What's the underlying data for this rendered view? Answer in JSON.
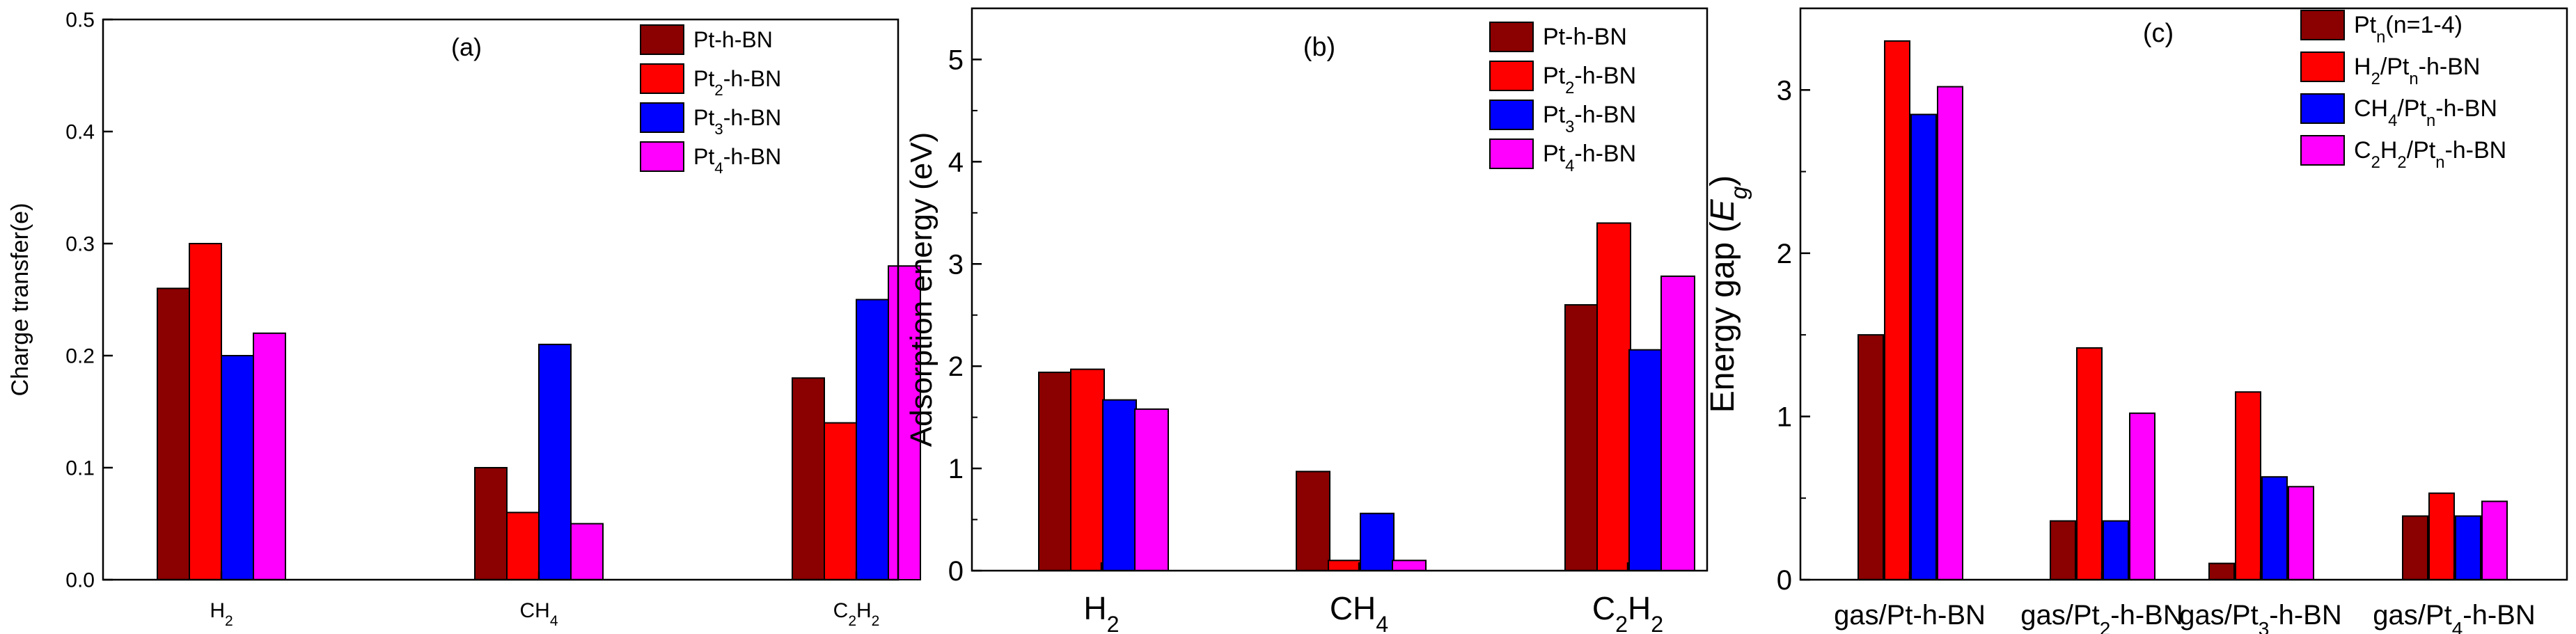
{
  "colors": {
    "dark_red": "#8B0000",
    "red": "#FF0000",
    "blue": "#0000FF",
    "magenta": "#FF00FF"
  },
  "chart_data": [
    {
      "type": "bar",
      "panel": "(a)",
      "xlabel": "",
      "ylabel": "Charge transfer(e)",
      "ylim": [
        0,
        0.5
      ],
      "yticks": [
        "0.0",
        "0.1",
        "0.2",
        "0.3",
        "0.4",
        "0.5"
      ],
      "categories": [
        {
          "base": "H",
          "sub": "2",
          "tail": "",
          "sub2": ""
        },
        {
          "base": "CH",
          "sub": "4",
          "tail": "",
          "sub2": ""
        },
        {
          "base": "C",
          "sub": "2",
          "tail": "H",
          "sub2": "2"
        }
      ],
      "legend_position": "top-right",
      "series": [
        {
          "name": "Pt-h-BN",
          "legend": {
            "pre": "Pt-h-BN",
            "sub": "",
            "mid": "",
            "sub2": "",
            "post": ""
          },
          "values": [
            0.26,
            0.1,
            0.18
          ]
        },
        {
          "name": "Pt2-h-BN",
          "legend": {
            "pre": "Pt",
            "sub": "2",
            "mid": "-h-BN",
            "sub2": "",
            "post": ""
          },
          "values": [
            0.3,
            0.06,
            0.14
          ]
        },
        {
          "name": "Pt3-h-BN",
          "legend": {
            "pre": "Pt",
            "sub": "3",
            "mid": "-h-BN",
            "sub2": "",
            "post": ""
          },
          "values": [
            0.2,
            0.21,
            0.25
          ]
        },
        {
          "name": "Pt4-h-BN",
          "legend": {
            "pre": "Pt",
            "sub": "4",
            "mid": "-h-BN",
            "sub2": "",
            "post": ""
          },
          "values": [
            0.22,
            0.05,
            0.28
          ]
        }
      ]
    },
    {
      "type": "bar",
      "panel": "(b)",
      "xlabel": "",
      "ylabel": "Adsorption energy (eV)",
      "ylim": [
        0,
        5.5
      ],
      "yticks": [
        "0",
        "1",
        "2",
        "3",
        "4",
        "5"
      ],
      "categories": [
        {
          "base": "H",
          "sub": "2",
          "tail": "",
          "sub2": ""
        },
        {
          "base": "CH",
          "sub": "4",
          "tail": "",
          "sub2": ""
        },
        {
          "base": "C",
          "sub": "2",
          "tail": "H",
          "sub2": "2"
        }
      ],
      "legend_position": "top-right",
      "series": [
        {
          "name": "Pt-h-BN",
          "legend": {
            "pre": "Pt-h-BN",
            "sub": "",
            "mid": "",
            "sub2": "",
            "post": ""
          },
          "values": [
            1.94,
            0.97,
            2.6
          ]
        },
        {
          "name": "Pt2-h-BN",
          "legend": {
            "pre": "Pt",
            "sub": "2",
            "mid": "-h-BN",
            "sub2": "",
            "post": ""
          },
          "values": [
            1.97,
            0.1,
            3.4
          ]
        },
        {
          "name": "Pt3-h-BN",
          "legend": {
            "pre": "Pt",
            "sub": "3",
            "mid": "-h-BN",
            "sub2": "",
            "post": ""
          },
          "values": [
            1.67,
            0.56,
            2.16
          ]
        },
        {
          "name": "Pt4-h-BN",
          "legend": {
            "pre": "Pt",
            "sub": "4",
            "mid": "-h-BN",
            "sub2": "",
            "post": ""
          },
          "values": [
            1.58,
            0.1,
            2.88
          ]
        }
      ]
    },
    {
      "type": "bar",
      "panel": "(c)",
      "xlabel": "",
      "ylabel": {
        "pre": "Energy gap (",
        "italic": "E",
        "sub": "g",
        "post": ")"
      },
      "ylim": [
        0,
        3.5
      ],
      "yticks": [
        "0",
        "1",
        "2",
        "3"
      ],
      "categories": [
        {
          "pre": "gas/Pt",
          "sub": "",
          "post": "-h-BN"
        },
        {
          "pre": "gas/Pt",
          "sub": "2",
          "post": "-h-BN"
        },
        {
          "pre": "gas/Pt",
          "sub": "3",
          "post": "-h-BN"
        },
        {
          "pre": "gas/Pt",
          "sub": "4",
          "post": "-h-BN"
        }
      ],
      "legend_position": "top-right",
      "series": [
        {
          "name": "Ptn(n=1-4)",
          "legend": {
            "pre": "Pt",
            "sub": "n",
            "mid": "(n=1-4)",
            "sub2": "",
            "post": ""
          },
          "values": [
            1.5,
            0.36,
            0.1,
            0.39
          ]
        },
        {
          "name": "H2/Ptn-h-BN",
          "legend": {
            "pre": "H",
            "sub": "2",
            "mid": "/Pt",
            "sub2": "n",
            "post": "-h-BN"
          },
          "values": [
            3.3,
            1.42,
            1.15,
            0.53
          ]
        },
        {
          "name": "CH4/Ptn-h-BN",
          "legend": {
            "pre": "CH",
            "sub": "4",
            "mid": "/Pt",
            "sub2": "n",
            "post": "-h-BN"
          },
          "values": [
            2.85,
            0.36,
            0.63,
            0.39
          ]
        },
        {
          "name": "C2H2/Ptn-h-BN",
          "legend": {
            "pre": "C",
            "sub": "2",
            "mid": "H",
            "sub2": "2",
            "post": "/Pt",
            "sub3": "n",
            "post2": "-h-BN"
          },
          "values": [
            3.02,
            1.02,
            0.57,
            0.48
          ]
        }
      ]
    }
  ]
}
